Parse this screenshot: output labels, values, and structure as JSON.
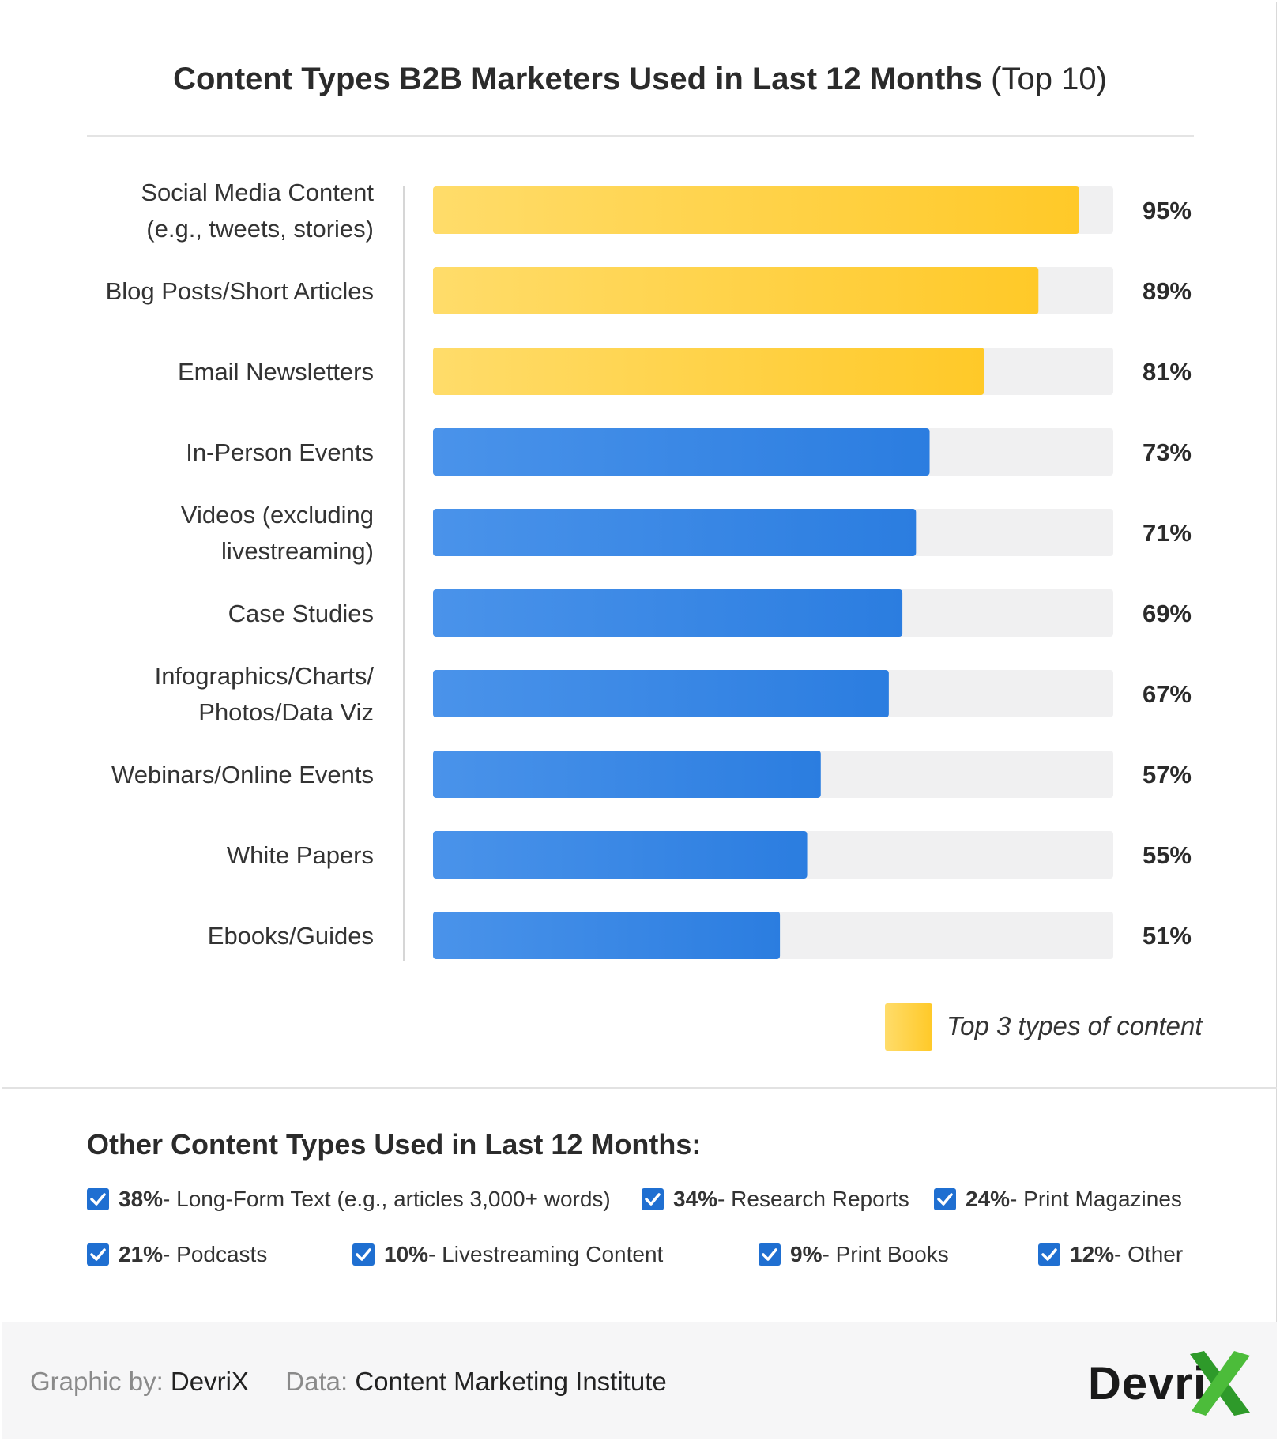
{
  "title": {
    "bold": "Content Types B2B Marketers Used in Last 12 Months",
    "light": "(Top 10)"
  },
  "chart_data": {
    "type": "bar",
    "orientation": "horizontal",
    "categories": [
      [
        "Social Media Content",
        "(e.g., tweets, stories)"
      ],
      [
        "Blog Posts/Short Articles"
      ],
      [
        "Email Newsletters"
      ],
      [
        "In-Person Events"
      ],
      [
        "Videos (excluding",
        "livestreaming)"
      ],
      [
        "Case Studies"
      ],
      [
        "Infographics/Charts/",
        "Photos/Data Viz"
      ],
      [
        "Webinars/Online Events"
      ],
      [
        "White Papers"
      ],
      [
        "Ebooks/Guides"
      ]
    ],
    "values": [
      95,
      89,
      81,
      73,
      71,
      69,
      67,
      57,
      55,
      51
    ],
    "value_labels": [
      "95%",
      "89%",
      "81%",
      "73%",
      "71%",
      "69%",
      "67%",
      "57%",
      "55%",
      "51%"
    ],
    "highlight_count": 3,
    "xlim": [
      0,
      100
    ],
    "colors": {
      "highlight": [
        "#ffdc6a",
        "#ffc928"
      ],
      "normal": [
        "#4a93ea",
        "#2b7de0"
      ],
      "track": "#f0f0f1"
    },
    "legend": {
      "label": "Top 3 types of content",
      "position": "bottom-right"
    }
  },
  "other": {
    "title": "Other Content Types Used in Last 12 Months:",
    "items": [
      {
        "pct": "38%",
        "label": "Long-Form Text (e.g., articles 3,000+ words)"
      },
      {
        "pct": "34%",
        "label": "Research Reports"
      },
      {
        "pct": "24%",
        "label": "Print Magazines"
      },
      {
        "pct": "21%",
        "label": "Podcasts"
      },
      {
        "pct": "10%",
        "label": "Livestreaming Content"
      },
      {
        "pct": "9%",
        "label": "Print Books"
      },
      {
        "pct": "12%",
        "label": "Other"
      }
    ],
    "separator": " - ",
    "check_icon": "checkbox-checked-icon"
  },
  "footer": {
    "graphic_by_label": "Graphic by:",
    "graphic_by": "DevriX",
    "data_label": "Data:",
    "data_source": "Content Marketing Institute",
    "logo_text": "Devri",
    "logo_colors": {
      "x": "#4cbc3a",
      "x_dark": "#2e9a2a"
    }
  }
}
